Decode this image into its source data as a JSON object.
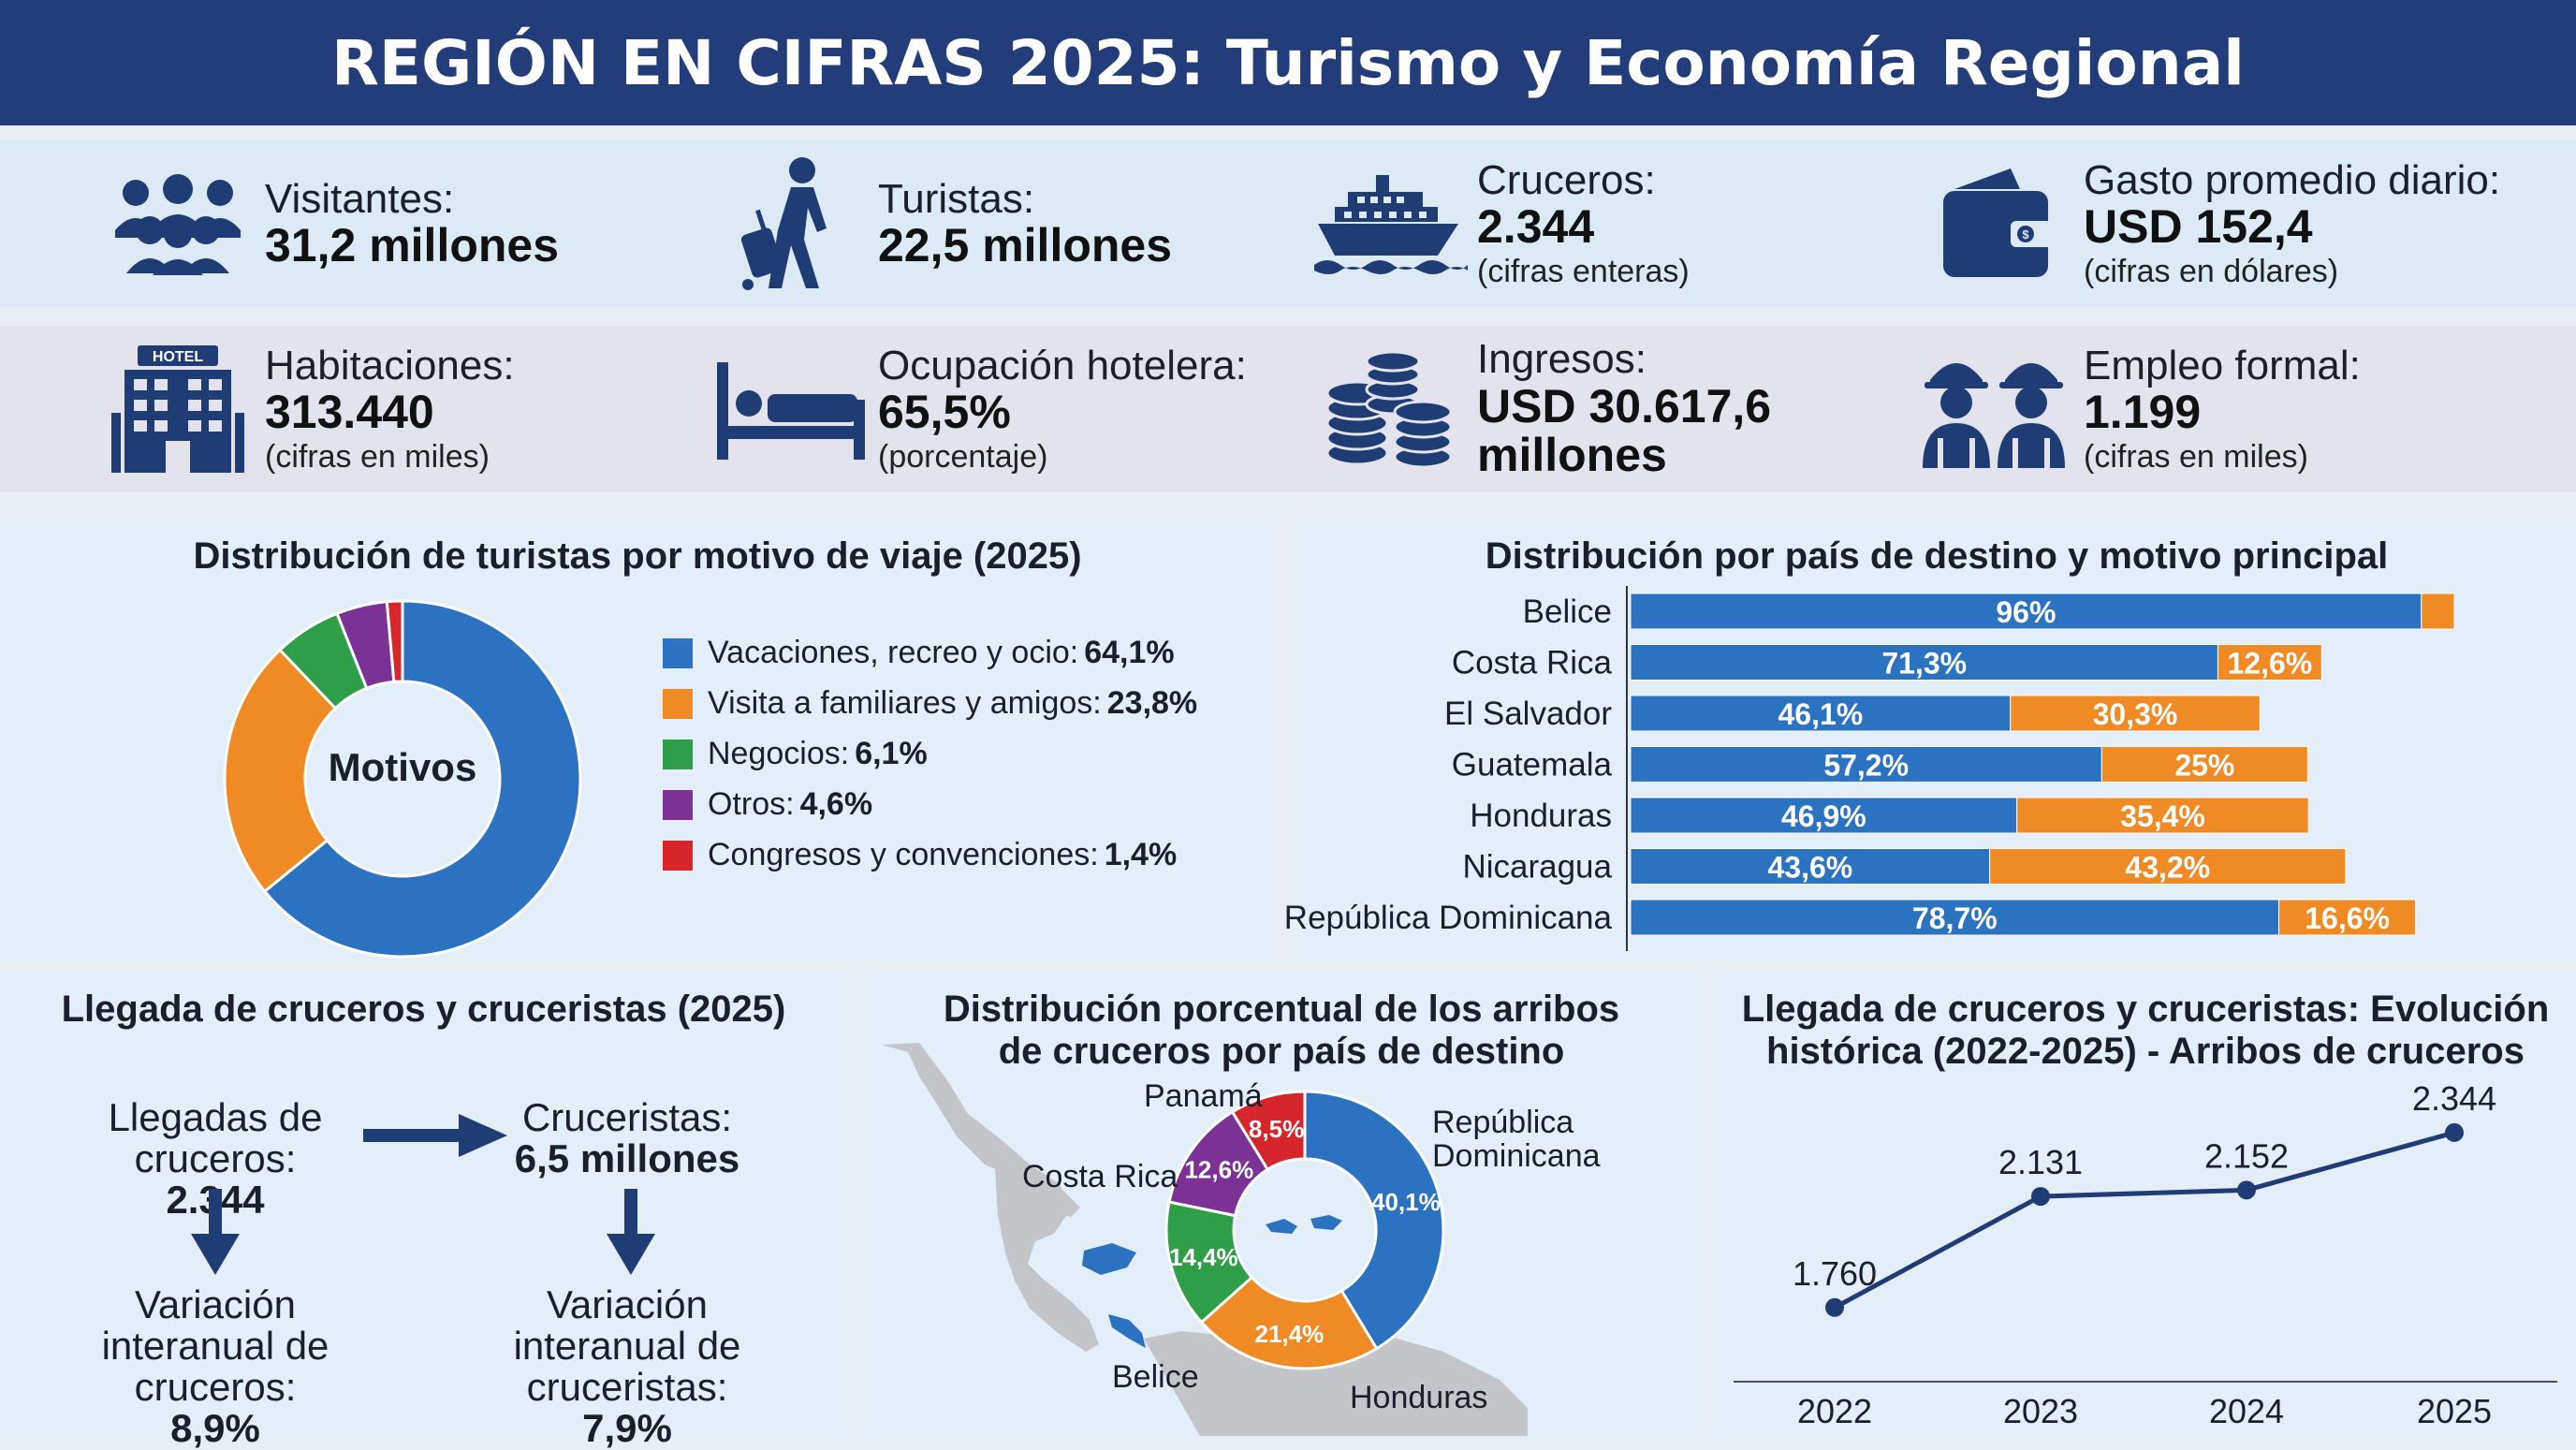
{
  "title": "REGIÓN EN CIFRAS 2025: Turismo y Economía Regional",
  "kpis_row1": [
    {
      "icon": "people-group-icon",
      "label": "Visitantes:",
      "value": "31,2 millones",
      "note": ""
    },
    {
      "icon": "traveler-suitcase-icon",
      "label": "Turistas:",
      "value": "22,5 millones",
      "note": ""
    },
    {
      "icon": "cruise-ship-icon",
      "label": "Cruceros:",
      "value": "2.344",
      "note": "(cifras enteras)"
    },
    {
      "icon": "wallet-icon",
      "label": "Gasto promedio diario:",
      "value": "USD 152,4",
      "note": "(cifras en dólares)"
    }
  ],
  "kpis_row2": [
    {
      "icon": "hotel-building-icon",
      "label": "Habitaciones:",
      "value": "313.440",
      "note": "(cifras en miles)",
      "badge": "HOTEL"
    },
    {
      "icon": "bed-icon",
      "label": "Ocupación hotelera:",
      "value": "65,5%",
      "note": "(porcentaje)"
    },
    {
      "icon": "coin-stacks-icon",
      "label": "Ingresos:",
      "value": "USD 30.617,6 millones",
      "note": ""
    },
    {
      "icon": "workers-helmet-icon",
      "label": "Empleo formal:",
      "value": "1.199",
      "note": "(cifras en miles)"
    }
  ],
  "donut_panel": {
    "title": "Distribución de turistas por motivo de viaje (2025)",
    "center_label": "Motivos",
    "legend": [
      {
        "label": "Vacaciones, recreo y ocio:",
        "value": "64,1%"
      },
      {
        "label": "Visita a familiares y amigos:",
        "value": "23,8%"
      },
      {
        "label": "Negocios:",
        "value": "6,1%"
      },
      {
        "label": "Otros:",
        "value": "4,6%"
      },
      {
        "label": "Congresos y convenciones:",
        "value": "1,4%"
      }
    ]
  },
  "bar_panel": {
    "title": "Distribución por país de destino y motivo principal"
  },
  "cruise_flow": {
    "title": "Llegada de cruceros y cruceristas (2025)",
    "arrivals_label": "Llegadas de cruceros:",
    "arrivals_value": "2.344",
    "passengers_label": "Cruceristas:",
    "passengers_value": "6,5 millones",
    "var_cruises_label": "Variación interanual de cruceros:",
    "var_cruises_value": "8,9%",
    "var_passengers_label": "Variación interanual de cruceristas:",
    "var_passengers_value": "7,9%"
  },
  "map_panel": {
    "title_line1": "Distribución porcentual de los arribos",
    "title_line2": "de cruceros por país de destino",
    "callouts": {
      "panama": "Panamá",
      "costa_rica": "Costa Rica",
      "rd_line1": "República",
      "rd_line2": "Dominicana",
      "belice": "Belice",
      "honduras": "Honduras"
    }
  },
  "line_panel": {
    "title_line1": "Llegada de cruceros y cruceristas: Evolución",
    "title_line2": "histórica (2022-2025) - Arribos de cruceros"
  },
  "chart_data": [
    {
      "type": "pie",
      "title": "Distribución de turistas por motivo de viaje (2025)",
      "donut": true,
      "labels": [
        "Vacaciones, recreo y ocio",
        "Visita a familiares y amigos",
        "Negocios",
        "Otros",
        "Congresos y convenciones"
      ],
      "values": [
        64.1,
        23.8,
        6.1,
        4.6,
        1.4
      ],
      "colors": [
        "#2b72c0",
        "#f08a24",
        "#2e9e48",
        "#7b3294",
        "#d7262b"
      ]
    },
    {
      "type": "bar",
      "orientation": "horizontal",
      "stacked": true,
      "title": "Distribución por país de destino y motivo principal",
      "categories": [
        "Belice",
        "Costa Rica",
        "El Salvador",
        "Guatemala",
        "Honduras",
        "Nicaragua",
        "República Dominicana"
      ],
      "series": [
        {
          "values": [
            96,
            71.3,
            46.1,
            57.2,
            46.9,
            43.6,
            78.7
          ],
          "labels": [
            "96%",
            "71,3%",
            "46,1%",
            "57,2%",
            "46,9%",
            "43,6%",
            "78,7%"
          ],
          "color": "#2b72c0"
        },
        {
          "values": [
            4,
            12.6,
            30.3,
            25,
            35.4,
            43.2,
            16.6
          ],
          "labels": [
            "",
            "12,6%",
            "30,3%",
            "25%",
            "35,4%",
            "43,2%",
            "16,6%"
          ],
          "color": "#f08a24"
        }
      ]
    },
    {
      "type": "pie",
      "donut": true,
      "title": "Distribución porcentual de los arribos de cruceros por país de destino",
      "labels": [
        "República Dominicana",
        "Honduras",
        "Belice",
        "Costa Rica",
        "Panamá"
      ],
      "values": [
        40.1,
        21.4,
        14.4,
        12.6,
        8.5
      ],
      "value_labels": [
        "40,1%",
        "21,4%",
        "14,4%",
        "12,6%",
        "8,5%"
      ],
      "colors": [
        "#2b72c0",
        "#f08a24",
        "#2e9e48",
        "#7b3294",
        "#d7262b"
      ]
    },
    {
      "type": "line",
      "title": "Llegada de cruceros y cruceristas: Evolución histórica (2022-2025) - Arribos de cruceros",
      "x": [
        "2022",
        "2023",
        "2024",
        "2025"
      ],
      "values": [
        1760,
        2131,
        2152,
        2344
      ],
      "value_labels": [
        "1.760",
        "2.131",
        "2.152",
        "2.344"
      ],
      "color": "#1f3d74"
    }
  ]
}
